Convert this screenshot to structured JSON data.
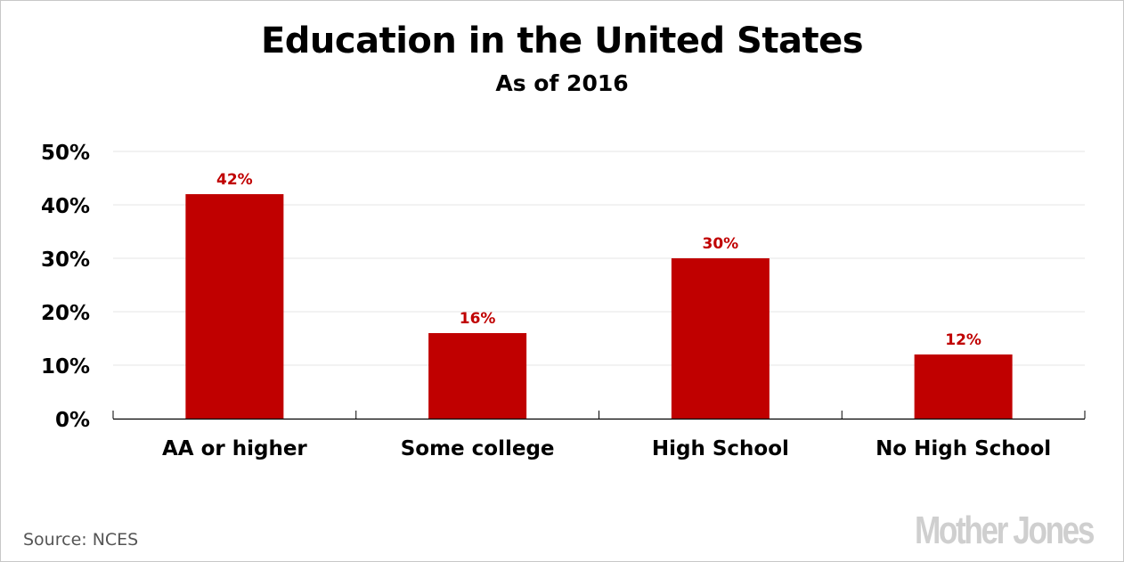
{
  "chart_data": {
    "type": "bar",
    "title": "Education in the United States",
    "subtitle": "As of 2016",
    "categories": [
      "AA or higher",
      "Some college",
      "High School",
      "No High School"
    ],
    "values": [
      42,
      16,
      30,
      12
    ],
    "data_labels": [
      "42%",
      "16%",
      "30%",
      "12%"
    ],
    "ylim": [
      0,
      50
    ],
    "yticks": [
      0,
      10,
      20,
      30,
      40,
      50
    ],
    "ytick_labels": [
      "0%",
      "10%",
      "20%",
      "30%",
      "40%",
      "50%"
    ],
    "xlabel": "",
    "ylabel": "",
    "grid": true,
    "bar_color": "#c00000"
  },
  "source": "Source:  NCES",
  "logo": "Mother Jones"
}
